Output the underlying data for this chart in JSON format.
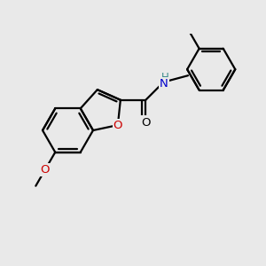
{
  "background_color": "#e9e9e9",
  "figsize": [
    3.0,
    3.0
  ],
  "dpi": 100,
  "bond_color": "#000000",
  "o_color": "#cc0000",
  "n_color": "#0000cc",
  "h_color": "#3a8a8a",
  "lw": 1.6,
  "xlim": [
    0.0,
    10.0
  ],
  "ylim": [
    1.5,
    9.0
  ]
}
